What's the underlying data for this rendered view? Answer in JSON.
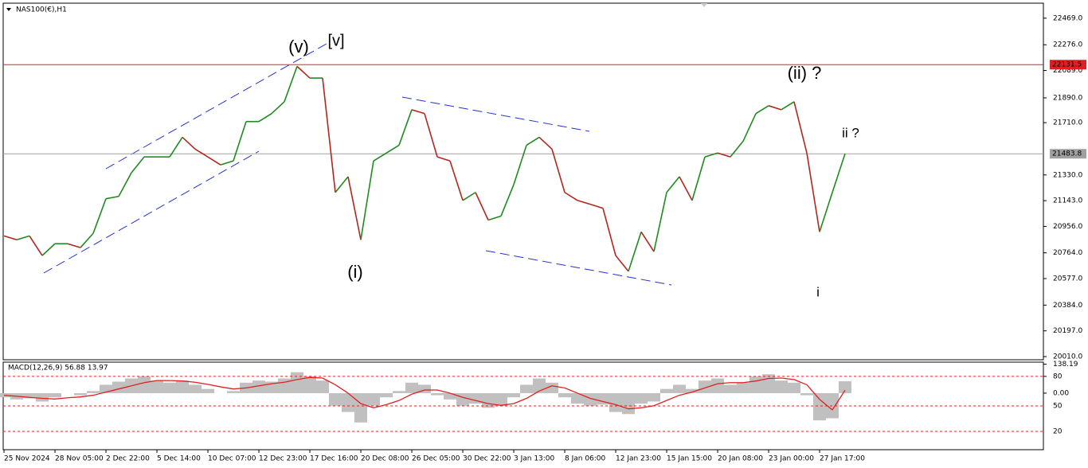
{
  "chart_data": {
    "type": "line",
    "title": "NAS100(€),H1",
    "categories": [
      "25 Nov 2024",
      null,
      null,
      null,
      "28 Nov 05:00",
      null,
      null,
      null,
      "2 Dec 22:00",
      null,
      null,
      null,
      "5 Dec 14:00",
      null,
      null,
      null,
      "10 Dec 07:00",
      null,
      null,
      null,
      "12 Dec 23:00",
      null,
      null,
      null,
      "17 Dec 16:00",
      null,
      null,
      null,
      "20 Dec 08:00",
      null,
      null,
      null,
      "26 Dec 05:00",
      null,
      null,
      null,
      "30 Dec 22:00",
      null,
      null,
      null,
      "3 Jan 13:00",
      null,
      null,
      null,
      "8 Jan 06:00",
      null,
      null,
      null,
      "12 Jan 23:00",
      null,
      null,
      null,
      "15 Jan 15:00",
      null,
      null,
      null,
      "20 Jan 08:00",
      null,
      null,
      null,
      "23 Jan 00:00",
      null,
      null,
      null,
      "27 Jan 17:00",
      null,
      null
    ],
    "series": [
      {
        "color": "#1f8a1f",
        "down_color": "#b3261e",
        "values": [
          20887,
          20859,
          20887,
          20744,
          20830,
          20830,
          20802,
          20905,
          21157,
          21174,
          21346,
          21461,
          21461,
          21461,
          21604,
          21518,
          21461,
          21403,
          21432,
          21718,
          21718,
          21776,
          21862,
          22119,
          22034,
          22034,
          21203,
          21317,
          20859,
          21432,
          21489,
          21546,
          21804,
          21776,
          21461,
          21432,
          21145,
          21203,
          21002,
          21031,
          21260,
          21546,
          21604,
          21518,
          21203,
          21145,
          21117,
          21088,
          20744,
          20630,
          20916,
          20773,
          21203,
          21317,
          21145,
          21461,
          21489,
          21461,
          21575,
          21776,
          21833,
          21804,
          21862,
          21489,
          20916,
          21203,
          21484
        ]
      }
    ],
    "ylim": [
      19987,
      22578
    ],
    "yticks": [
      {
        "value": 22469,
        "label": "22469.0"
      },
      {
        "value": 22276,
        "label": "22276.0"
      },
      {
        "value": 22089,
        "label": "22089.0"
      },
      {
        "value": 21890,
        "label": "21890.0"
      },
      {
        "value": 21710,
        "label": "21710.0"
      },
      {
        "value": 21330,
        "label": "21330.0"
      },
      {
        "value": 21143,
        "label": "21143.0"
      },
      {
        "value": 20956,
        "label": "20956.0"
      },
      {
        "value": 20764,
        "label": "20764.0"
      },
      {
        "value": 20577,
        "label": "20577.0"
      },
      {
        "value": 20384,
        "label": "20384.0"
      },
      {
        "value": 20197,
        "label": "20197.0"
      },
      {
        "value": 20010,
        "label": "20010.0"
      }
    ],
    "hlines": [
      {
        "value": 22131.5,
        "label": "22131.5",
        "color": "#e02020"
      },
      {
        "value": 21483.8,
        "label": "21483.8",
        "color": "#a0a0a0"
      }
    ],
    "annotations": [
      {
        "text": "(v)",
        "color": "#1414c8"
      },
      {
        "text": "[v]",
        "color": "#1a7a1a"
      },
      {
        "text": "(i)",
        "color": "#1414c8"
      },
      {
        "text": "(ii) ?",
        "color": "#1414c8"
      },
      {
        "text": "ii ?",
        "color": "#e020e0"
      },
      {
        "text": "i",
        "color": "#e020e0"
      }
    ],
    "macd": {
      "title": "MACD(12,26,9) 56.88 13.97",
      "color": "#c0c0c0",
      "values": [
        -20,
        -30,
        -25,
        -40,
        -20,
        0,
        -10,
        10,
        40,
        55,
        70,
        80,
        60,
        50,
        60,
        40,
        20,
        0,
        10,
        50,
        60,
        55,
        70,
        100,
        80,
        60,
        -60,
        -90,
        -140,
        -60,
        -20,
        10,
        50,
        40,
        -10,
        -30,
        -60,
        -50,
        -70,
        -60,
        -20,
        40,
        70,
        50,
        -20,
        -50,
        -60,
        -55,
        -90,
        -100,
        -50,
        -40,
        20,
        40,
        20,
        60,
        70,
        40,
        50,
        80,
        90,
        60,
        50,
        -10,
        -130,
        -120,
        56.88
      ],
      "signal": {
        "color": "#e02020",
        "values": [
          -10,
          -15,
          -20,
          -25,
          -28,
          -22,
          -18,
          -10,
          5,
          20,
          35,
          50,
          60,
          60,
          58,
          52,
          42,
          30,
          20,
          25,
          35,
          45,
          52,
          65,
          75,
          72,
          40,
          0,
          -50,
          -70,
          -55,
          -35,
          -5,
          15,
          15,
          0,
          -20,
          -35,
          -50,
          -58,
          -50,
          -25,
          10,
          35,
          25,
          0,
          -25,
          -40,
          -55,
          -75,
          -70,
          -60,
          -35,
          -10,
          5,
          25,
          45,
          50,
          50,
          58,
          70,
          72,
          65,
          40,
          -30,
          -80,
          13.97
        ]
      },
      "ylim": [
        -270,
        148
      ],
      "yticks": [
        {
          "value": 138.19,
          "label": "138.19"
        },
        80,
        {
          "value": 0,
          "label": "0.00"
        }
      ],
      "levels": [
        "50",
        "20"
      ]
    }
  }
}
